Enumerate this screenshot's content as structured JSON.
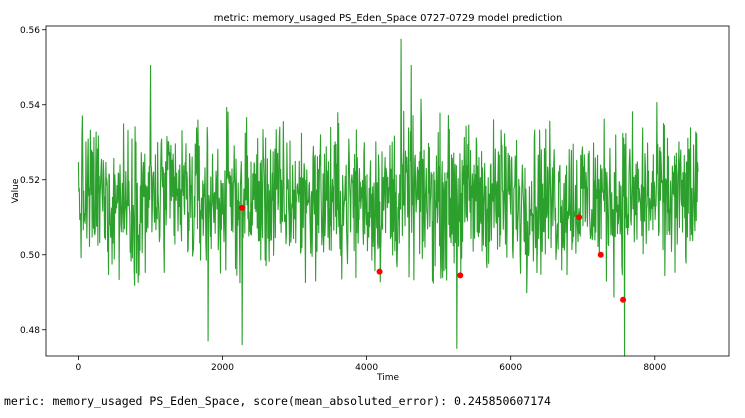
{
  "chart_data": {
    "type": "line",
    "title": "metric: memory_usaged PS_Eden_Space 0727-0729 model prediction",
    "xlabel": "Time",
    "ylabel": "Value",
    "xlim": [
      -450,
      9030
    ],
    "ylim": [
      0.473,
      0.561
    ],
    "x_ticks": [
      0,
      2000,
      4000,
      6000,
      8000
    ],
    "y_ticks": [
      0.48,
      0.5,
      0.52,
      0.54,
      0.56
    ],
    "x_tick_labels": [
      "0",
      "2000",
      "4000",
      "6000",
      "8000"
    ],
    "y_tick_labels": [
      "0.48",
      "0.50",
      "0.52",
      "0.54",
      "0.56"
    ],
    "grid": false,
    "series": [
      {
        "kind": "line",
        "color": "#2ca02c",
        "n_points": 8600,
        "x_range": [
          0,
          8600
        ],
        "typical_range": [
          0.49,
          0.54
        ],
        "center": 0.515,
        "notable_peaks": [
          {
            "x": 4480,
            "y": 0.5575
          },
          {
            "x": 1000,
            "y": 0.5505
          },
          {
            "x": 4620,
            "y": 0.5505
          }
        ],
        "notable_troughs": [
          {
            "x": 7580,
            "y": 0.473
          },
          {
            "x": 5250,
            "y": 0.475
          },
          {
            "x": 2270,
            "y": 0.476
          },
          {
            "x": 1800,
            "y": 0.477
          }
        ]
      },
      {
        "kind": "scatter",
        "color": "#ff0000",
        "points": [
          {
            "x": 2270,
            "y": 0.5125
          },
          {
            "x": 4180,
            "y": 0.4955
          },
          {
            "x": 5300,
            "y": 0.4945
          },
          {
            "x": 6950,
            "y": 0.51
          },
          {
            "x": 7250,
            "y": 0.5
          },
          {
            "x": 7560,
            "y": 0.488
          }
        ]
      }
    ]
  },
  "footer": {
    "score_text": "meric: memory_usaged PS_Eden_Space, score(mean_absoluted_error): 0.245850607174"
  }
}
